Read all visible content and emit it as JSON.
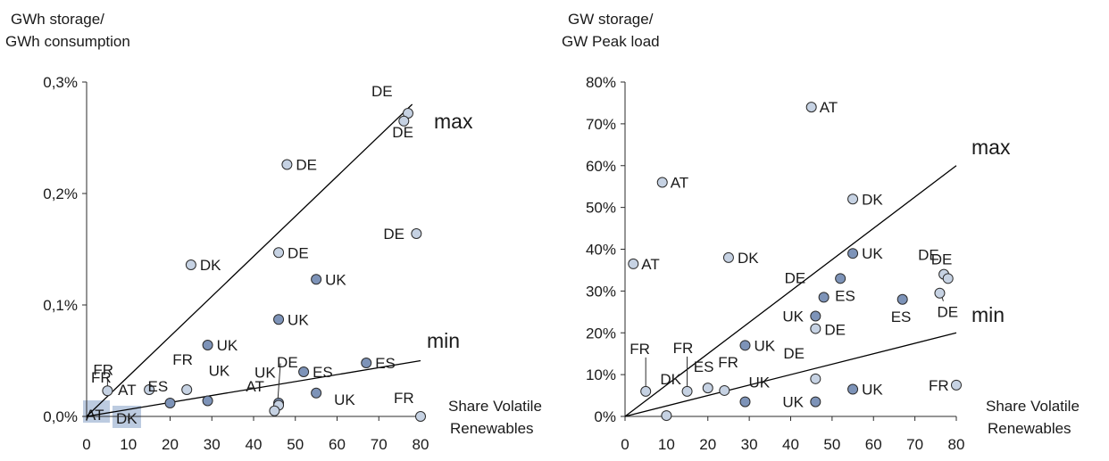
{
  "colors": {
    "dark_point": "#7d93b8",
    "light_point": "#c6d2e3",
    "point_stroke": "#2b2b2b",
    "axis": "#2b2b2b",
    "lines": "#000000",
    "box_highlight": "#bccbe0"
  },
  "chart_data": [
    {
      "type": "scatter",
      "title_lines": [
        "GWh storage/",
        "GWh consumption"
      ],
      "xlabel_lines": [
        "Share Volatile",
        "Renewables"
      ],
      "xlim": [
        0,
        80
      ],
      "ylim": [
        0,
        0.3
      ],
      "x_ticks": [
        "0",
        "10",
        "20",
        "30",
        "40",
        "50",
        "60",
        "70",
        "80"
      ],
      "y_ticks": [
        "0,0%",
        "0,1%",
        "0,2%",
        "0,3%"
      ],
      "x_tick_values": [
        0,
        10,
        20,
        30,
        40,
        50,
        60,
        70,
        80
      ],
      "y_tick_values": [
        0,
        0.1,
        0.2,
        0.3
      ],
      "lines": [
        {
          "label": "max",
          "from": [
            0,
            0
          ],
          "to": [
            78,
            0.28
          ]
        },
        {
          "label": "min",
          "from": [
            0,
            0
          ],
          "to": [
            80,
            0.05
          ]
        }
      ],
      "points": [
        {
          "x": 77,
          "y": 0.272,
          "shade": "light",
          "label": "DE"
        },
        {
          "x": 76,
          "y": 0.265,
          "shade": "light",
          "label": "DE"
        },
        {
          "x": 48,
          "y": 0.226,
          "shade": "light",
          "label": "DE"
        },
        {
          "x": 79,
          "y": 0.164,
          "shade": "light",
          "label": "DE"
        },
        {
          "x": 25,
          "y": 0.136,
          "shade": "light",
          "label": "DK"
        },
        {
          "x": 46,
          "y": 0.147,
          "shade": "light",
          "label": "DE"
        },
        {
          "x": 55,
          "y": 0.123,
          "shade": "dark",
          "label": "UK"
        },
        {
          "x": 46,
          "y": 0.087,
          "shade": "dark",
          "label": "UK"
        },
        {
          "x": 29,
          "y": 0.064,
          "shade": "dark",
          "label": "UK"
        },
        {
          "x": 67,
          "y": 0.048,
          "shade": "dark",
          "label": "ES"
        },
        {
          "x": 52,
          "y": 0.04,
          "shade": "dark",
          "label": "ES"
        },
        {
          "x": 55,
          "y": 0.021,
          "shade": "dark",
          "label": "UK"
        },
        {
          "x": 29,
          "y": 0.014,
          "shade": "dark",
          "label": "UK"
        },
        {
          "x": 20,
          "y": 0.012,
          "shade": "dark",
          "label": "ES"
        },
        {
          "x": 24,
          "y": 0.024,
          "shade": "light",
          "label": "FR"
        },
        {
          "x": 15,
          "y": 0.024,
          "shade": "light",
          "label": "AT"
        },
        {
          "x": 5,
          "y": 0.023,
          "shade": "light",
          "label": "FR"
        },
        {
          "x": 46,
          "y": 0.012,
          "shade": "dark",
          "label": "DE"
        },
        {
          "x": 46,
          "y": 0.01,
          "shade": "light",
          "label": "UK"
        },
        {
          "x": 45,
          "y": 0.005,
          "shade": "light",
          "label": "AT"
        },
        {
          "x": 80,
          "y": 0.0,
          "shade": "light",
          "label": "FR"
        }
      ],
      "extra_labels": [
        "FR",
        "max",
        "min"
      ],
      "box_labels": [
        "AT",
        "DK"
      ]
    },
    {
      "type": "scatter",
      "title_lines": [
        "GW storage/",
        "GW Peak load"
      ],
      "xlabel_lines": [
        "Share Volatile",
        "Renewables"
      ],
      "xlim": [
        0,
        80
      ],
      "ylim": [
        0,
        80
      ],
      "x_ticks": [
        "0",
        "10",
        "20",
        "30",
        "40",
        "50",
        "60",
        "70",
        "80"
      ],
      "y_ticks": [
        "0%",
        "10%",
        "20%",
        "30%",
        "40%",
        "50%",
        "60%",
        "70%",
        "80%"
      ],
      "x_tick_values": [
        0,
        10,
        20,
        30,
        40,
        50,
        60,
        70,
        80
      ],
      "y_tick_values": [
        0,
        10,
        20,
        30,
        40,
        50,
        60,
        70,
        80
      ],
      "lines": [
        {
          "label": "max",
          "from": [
            0,
            0
          ],
          "to": [
            80,
            60
          ]
        },
        {
          "label": "min",
          "from": [
            0,
            0
          ],
          "to": [
            80,
            20
          ]
        }
      ],
      "points": [
        {
          "x": 45,
          "y": 74,
          "shade": "light",
          "label": "AT"
        },
        {
          "x": 9,
          "y": 56,
          "shade": "light",
          "label": "AT"
        },
        {
          "x": 55,
          "y": 52,
          "shade": "light",
          "label": "DK"
        },
        {
          "x": 25,
          "y": 38,
          "shade": "light",
          "label": "DK"
        },
        {
          "x": 2,
          "y": 36.5,
          "shade": "light",
          "label": "AT"
        },
        {
          "x": 55,
          "y": 39,
          "shade": "dark",
          "label": "UK"
        },
        {
          "x": 77,
          "y": 34,
          "shade": "light",
          "label": "DE"
        },
        {
          "x": 78,
          "y": 33,
          "shade": "light",
          "label": "DE"
        },
        {
          "x": 76,
          "y": 29.5,
          "shade": "light",
          "label": "DE"
        },
        {
          "x": 67,
          "y": 28,
          "shade": "dark",
          "label": "ES"
        },
        {
          "x": 52,
          "y": 33,
          "shade": "dark",
          "label": "ES"
        },
        {
          "x": 48,
          "y": 28.5,
          "shade": "dark",
          "label": "DE"
        },
        {
          "x": 46,
          "y": 24,
          "shade": "dark",
          "label": "UK"
        },
        {
          "x": 46,
          "y": 21,
          "shade": "light",
          "label": "DE"
        },
        {
          "x": 29,
          "y": 17,
          "shade": "dark",
          "label": "UK"
        },
        {
          "x": 46,
          "y": 9,
          "shade": "light",
          "label": "DE"
        },
        {
          "x": 55,
          "y": 6.5,
          "shade": "dark",
          "label": "UK"
        },
        {
          "x": 80,
          "y": 7.5,
          "shade": "light",
          "label": "FR"
        },
        {
          "x": 29,
          "y": 3.5,
          "shade": "dark",
          "label": "UK"
        },
        {
          "x": 46,
          "y": 3.5,
          "shade": "dark",
          "label": "UK"
        },
        {
          "x": 24,
          "y": 6.2,
          "shade": "light",
          "label": "FR"
        },
        {
          "x": 20,
          "y": 6.8,
          "shade": "light",
          "label": "ES"
        },
        {
          "x": 15,
          "y": 6,
          "shade": "light",
          "label": "FR"
        },
        {
          "x": 5,
          "y": 6,
          "shade": "light",
          "label": "FR"
        },
        {
          "x": 10,
          "y": 0.2,
          "shade": "light",
          "label": "DK"
        }
      ],
      "extra_labels": [
        "max",
        "min"
      ]
    }
  ]
}
